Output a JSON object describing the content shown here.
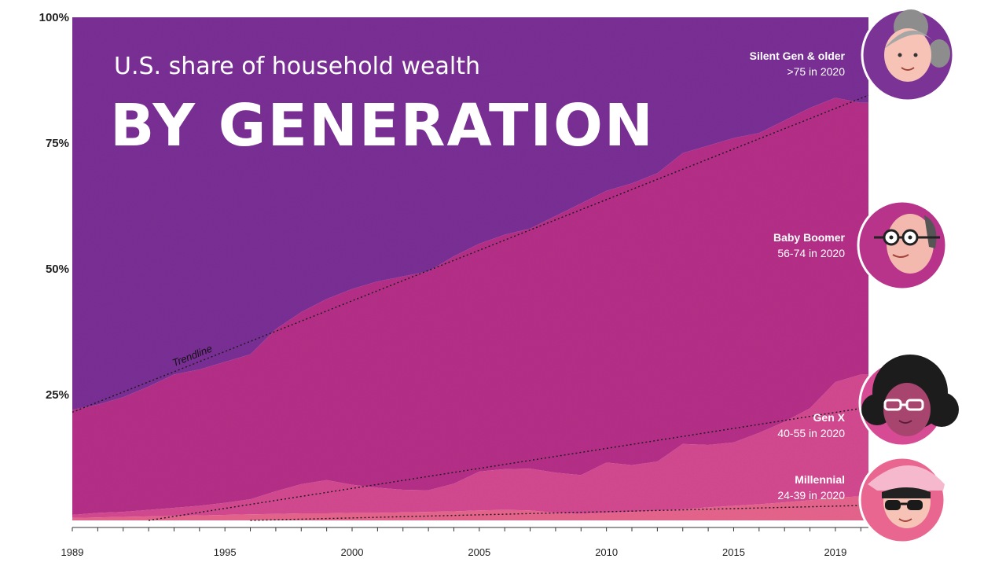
{
  "chart_data": {
    "type": "area",
    "title": "BY GENERATION",
    "subtitle": "U.S. share of household wealth",
    "xlim": [
      1989,
      2020.3
    ],
    "ylim": [
      0,
      100
    ],
    "x_ticks": [
      1989,
      1995,
      2000,
      2005,
      2010,
      2015,
      2019
    ],
    "y_ticks": [
      {
        "value": 100,
        "label": "100%"
      },
      {
        "value": 75,
        "label": "75%"
      },
      {
        "value": 50,
        "label": "50%"
      },
      {
        "value": 25,
        "label": "25%"
      }
    ],
    "stacked": true,
    "x": [
      1989,
      1990,
      1991,
      1992,
      1993,
      1994,
      1995,
      1996,
      1997,
      1998,
      1999,
      2000,
      2001,
      2002,
      2003,
      2004,
      2005,
      2006,
      2007,
      2008,
      2009,
      2010,
      2011,
      2012,
      2013,
      2014,
      2015,
      2016,
      2017,
      2018,
      2019,
      2020
    ],
    "series": [
      {
        "name": "Millennial",
        "values": [
          0.5,
          0.6,
          0.7,
          0.8,
          0.9,
          1.0,
          1.1,
          1.2,
          1.3,
          1.4,
          1.4,
          1.5,
          1.5,
          1.6,
          1.7,
          1.8,
          2.0,
          2.1,
          2.0,
          1.5,
          1.3,
          1.5,
          1.7,
          1.9,
          2.2,
          2.6,
          2.9,
          3.2,
          3.6,
          4.0,
          4.5,
          4.8
        ]
      },
      {
        "name": "Gen X",
        "values": [
          0.6,
          0.9,
          1.0,
          1.3,
          1.6,
          1.9,
          2.4,
          3.0,
          4.5,
          5.8,
          6.6,
          5.6,
          5.0,
          4.5,
          4.3,
          5.5,
          7.7,
          8.1,
          8.3,
          8.0,
          7.7,
          10.0,
          9.3,
          9.8,
          13.0,
          12.4,
          12.6,
          14.2,
          16.0,
          18.3,
          23.0,
          24.2
        ]
      },
      {
        "name": "Baby Boomer",
        "values": [
          20.9,
          21.5,
          22.8,
          24.5,
          26.5,
          27.1,
          28.0,
          28.8,
          32.2,
          34.2,
          36.0,
          38.9,
          41.0,
          42.4,
          43.5,
          45.2,
          45.3,
          46.6,
          47.7,
          51.0,
          54.0,
          54.0,
          56.0,
          57.3,
          57.8,
          59.5,
          60.5,
          59.6,
          59.9,
          59.7,
          56.5,
          54.0
        ]
      },
      {
        "name": "Silent Gen & older",
        "values": [
          78.0,
          77.0,
          75.5,
          73.4,
          71.0,
          70.0,
          68.5,
          67.0,
          62.0,
          58.6,
          56.0,
          54.0,
          52.5,
          51.5,
          50.5,
          47.5,
          45.0,
          43.2,
          42.0,
          39.5,
          37.0,
          34.5,
          33.0,
          31.0,
          27.0,
          25.5,
          24.0,
          23.0,
          20.5,
          18.0,
          16.0,
          17.0
        ]
      }
    ],
    "colors": {
      "Millennial": "#e8668f",
      "Gen X": "#d64b93",
      "Baby Boomer": "#b8338a",
      "Silent Gen & older": "#7b3396",
      "trendline": "#1a1a1a"
    },
    "trendlines": [
      {
        "label": "Trendline",
        "from": [
          1989,
          21.5
        ],
        "to": [
          2020.3,
          84.5
        ]
      },
      {
        "label": "",
        "from": [
          1992,
          0
        ],
        "to": [
          2020.3,
          22.5
        ]
      },
      {
        "label": "",
        "from": [
          1996,
          0
        ],
        "to": [
          2020.3,
          3
        ]
      }
    ],
    "legend": [
      {
        "name": "Silent Gen & older",
        "detail": ">75 in 2020",
        "icon": "silent-gen-avatar-icon"
      },
      {
        "name": "Baby Boomer",
        "detail": "56-74 in 2020",
        "icon": "baby-boomer-avatar-icon"
      },
      {
        "name": "Gen X",
        "detail": "40-55 in 2020",
        "icon": "gen-x-avatar-icon"
      },
      {
        "name": "Millennial",
        "detail": "24-39 in 2020",
        "icon": "millennial-avatar-icon"
      }
    ],
    "legend_placement": "right",
    "grid": false
  }
}
